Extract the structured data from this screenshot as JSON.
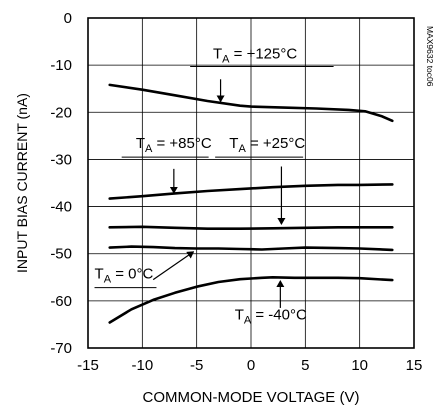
{
  "chart_data": {
    "type": "line",
    "title": "",
    "xlabel": "COMMON-MODE VOLTAGE (V)",
    "ylabel": "INPUT BIAS CURRENT (nA)",
    "watermark_id": "MAX9632 toc06",
    "xlim": [
      -15,
      15
    ],
    "ylim": [
      -70,
      0
    ],
    "x_ticks": [
      -15,
      -10,
      -5,
      0,
      5,
      10,
      15
    ],
    "y_ticks": [
      0,
      -10,
      -20,
      -30,
      -40,
      -50,
      -60,
      -70
    ],
    "x_tick_labels": [
      "-15",
      "-10",
      "-5",
      "0",
      "5",
      "10",
      "15"
    ],
    "y_tick_labels": [
      "0",
      "-10",
      "-20",
      "-30",
      "-40",
      "-50",
      "-60",
      "-70"
    ],
    "grid": true,
    "series": [
      {
        "name": "TA = +125°C",
        "label_main": "T",
        "label_sub": "A",
        "label_rest": " = +125°C",
        "x": [
          -13,
          -10,
          -7,
          -4,
          -1,
          0,
          3,
          6,
          9,
          10.5,
          12,
          13
        ],
        "y": [
          -14.2,
          -15.2,
          -16.4,
          -17.6,
          -18.6,
          -18.8,
          -19.0,
          -19.2,
          -19.5,
          -19.8,
          -20.8,
          -21.8
        ]
      },
      {
        "name": "TA = +85°C",
        "label_main": "T",
        "label_sub": "A",
        "label_rest": " = +85°C",
        "x": [
          -13,
          -10,
          -7,
          -4,
          -1,
          2,
          5,
          8,
          10,
          13
        ],
        "y": [
          -38.3,
          -37.8,
          -37.2,
          -36.7,
          -36.3,
          -35.9,
          -35.6,
          -35.4,
          -35.4,
          -35.3
        ]
      },
      {
        "name": "TA = +25°C",
        "label_main": "T",
        "label_sub": "A",
        "label_rest": " = +25°C",
        "x": [
          -13,
          -10,
          -7,
          -4,
          -1,
          2,
          5,
          8,
          10,
          13
        ],
        "y": [
          -44.4,
          -44.3,
          -44.5,
          -44.7,
          -44.7,
          -44.6,
          -44.5,
          -44.4,
          -44.4,
          -44.4
        ]
      },
      {
        "name": "TA = 0°C",
        "label_main": "T",
        "label_sub": "A",
        "label_rest": " = 0°C",
        "x": [
          -13,
          -11,
          -9,
          -7,
          -5,
          -3,
          -1,
          1,
          3,
          5,
          8,
          10,
          13
        ],
        "y": [
          -48.7,
          -48.5,
          -48.6,
          -48.8,
          -48.9,
          -48.9,
          -49.0,
          -49.1,
          -48.9,
          -48.7,
          -48.8,
          -48.9,
          -49.2
        ]
      },
      {
        "name": "TA = -40°C",
        "label_main": "T",
        "label_sub": "A",
        "label_rest": " = -40°C",
        "x": [
          -13,
          -11,
          -9,
          -7,
          -5,
          -3,
          -1,
          1,
          2,
          4,
          6,
          8,
          10,
          13
        ],
        "y": [
          -64.6,
          -61.8,
          -59.8,
          -58.3,
          -57.0,
          -56.0,
          -55.4,
          -55.1,
          -55.0,
          -55.1,
          -55.1,
          -55.1,
          -55.2,
          -55.6
        ]
      }
    ],
    "annotations": [
      {
        "series": 0,
        "text_x": -3.5,
        "text_y": -8.6,
        "leader": [
          [
            -5.6,
            -10.3
          ],
          [
            7.6,
            -10.3
          ]
        ],
        "arrow_from": [
          -2.8,
          -13.0
        ],
        "arrow_to": [
          -2.8,
          -17.7
        ]
      },
      {
        "series": 1,
        "text_x": -10.6,
        "text_y": -27.6,
        "leader": [
          [
            -11.9,
            -29.5
          ],
          [
            -3.9,
            -29.5
          ]
        ],
        "arrow_from": [
          -7.1,
          -32.0
        ],
        "arrow_to": [
          -7.1,
          -37.1
        ]
      },
      {
        "series": 2,
        "text_x": -2.0,
        "text_y": -27.6,
        "leader": [
          [
            -3.3,
            -29.5
          ],
          [
            4.8,
            -29.5
          ]
        ],
        "arrow_from": [
          2.8,
          -31.5
        ],
        "arrow_to": [
          2.8,
          -43.7
        ]
      },
      {
        "series": 3,
        "text_x": -14.4,
        "text_y": -55.3,
        "leader": [
          [
            -14.4,
            -57.2
          ],
          [
            -8.7,
            -57.2
          ]
        ],
        "arrow_from": [
          -9.0,
          -55.5
        ],
        "arrow_to": [
          -5.3,
          -49.6
        ]
      },
      {
        "series": 4,
        "text_x": -1.5,
        "text_y": -64.0,
        "leader": [],
        "arrow_from": [
          2.7,
          -61.5
        ],
        "arrow_to": [
          2.7,
          -55.8
        ]
      }
    ]
  }
}
